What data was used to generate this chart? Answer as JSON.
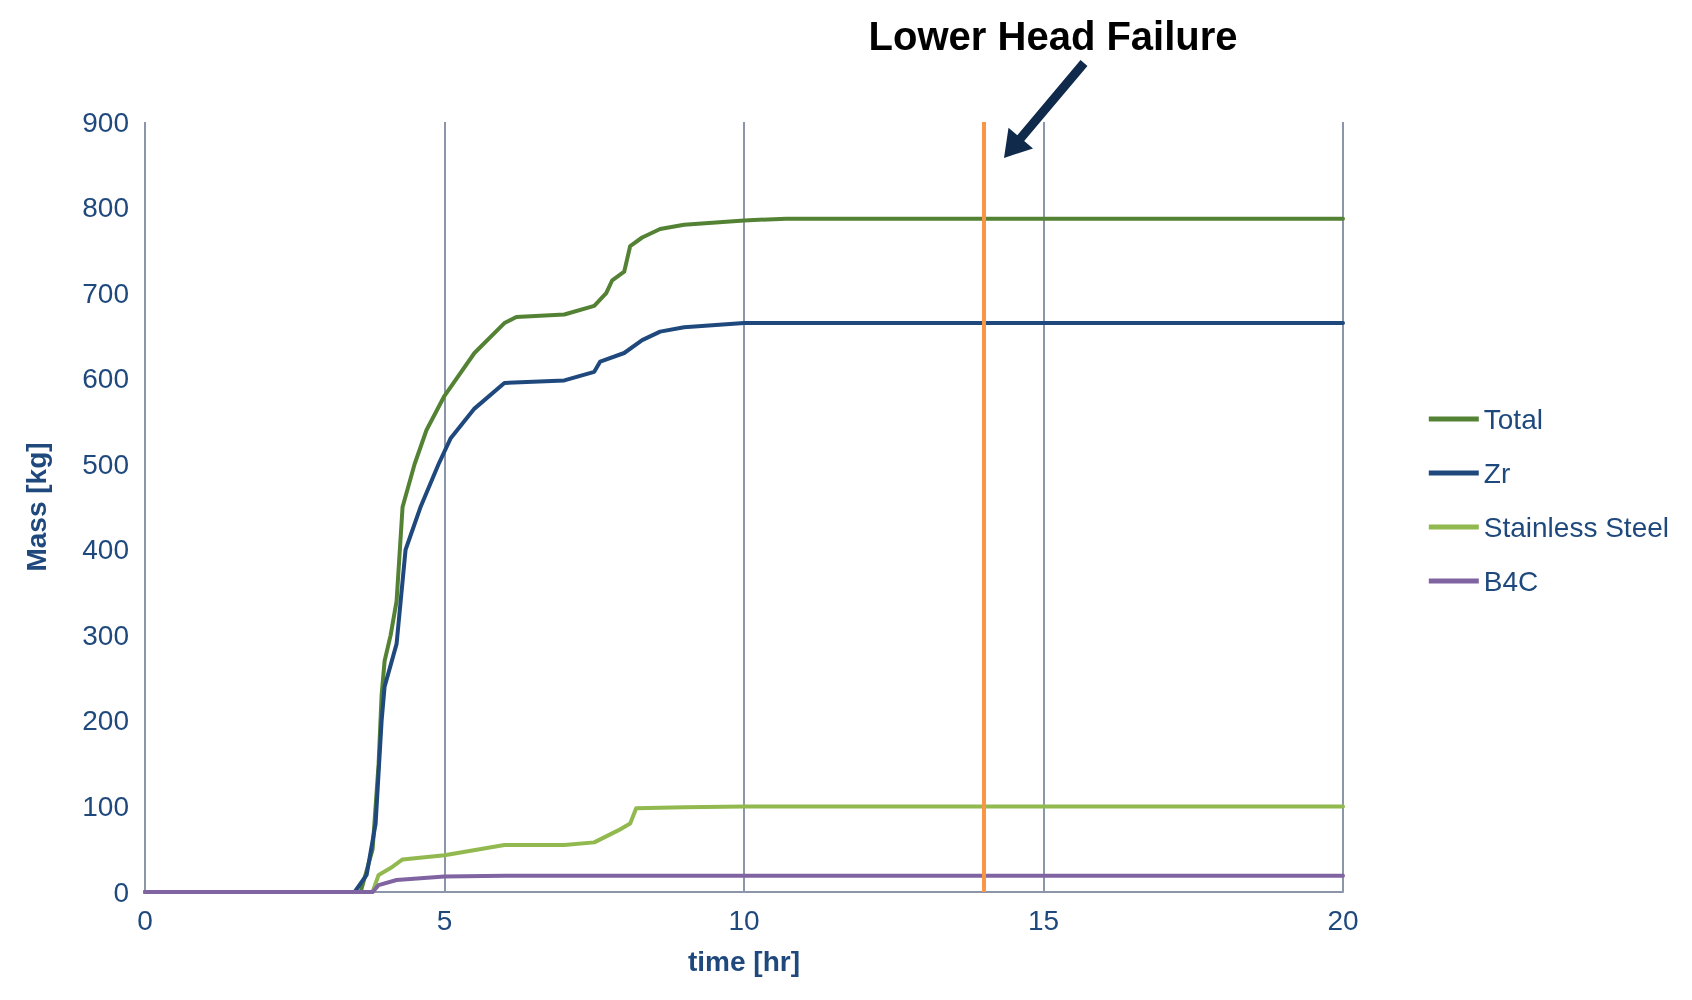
{
  "chart_data": {
    "type": "line",
    "xlabel": "time [hr]",
    "ylabel": "Mass [kg]",
    "xlim": [
      0,
      20
    ],
    "xticks": [
      0,
      5,
      10,
      15,
      20
    ],
    "ylim": [
      0,
      900
    ],
    "yticks": [
      0,
      100,
      200,
      300,
      400,
      500,
      600,
      700,
      800,
      900
    ],
    "grid": "x",
    "legend": "right",
    "marker": "none",
    "line_style": "solid",
    "series": [
      {
        "name": "Total",
        "color": "#548235",
        "x": [
          0,
          3.6,
          3.8,
          3.9,
          3.95,
          4.0,
          4.1,
          4.2,
          4.3,
          4.5,
          4.7,
          5.0,
          5.5,
          6.0,
          6.2,
          7.0,
          7.5,
          7.7,
          7.8,
          8.0,
          8.1,
          8.3,
          8.6,
          9.0,
          10,
          10.7,
          20
        ],
        "values": [
          0,
          0,
          50,
          150,
          230,
          270,
          300,
          340,
          450,
          500,
          540,
          580,
          630,
          665,
          672,
          675,
          685,
          700,
          715,
          725,
          755,
          765,
          775,
          780,
          785,
          787,
          787
        ]
      },
      {
        "name": "Zr",
        "color": "#1f497d",
        "x": [
          0,
          3.5,
          3.7,
          3.85,
          3.95,
          4.0,
          4.2,
          4.35,
          4.6,
          4.9,
          5.1,
          5.5,
          6.0,
          7.0,
          7.5,
          7.6,
          8.0,
          8.3,
          8.6,
          9.0,
          10,
          20
        ],
        "values": [
          0,
          0,
          20,
          80,
          200,
          240,
          290,
          400,
          450,
          500,
          530,
          565,
          595,
          598,
          608,
          620,
          630,
          645,
          655,
          660,
          665,
          665
        ]
      },
      {
        "name": "Stainless Steel",
        "color": "#92b94f",
        "x": [
          0,
          3.8,
          3.9,
          4.1,
          4.3,
          5.0,
          6.0,
          7.0,
          7.5,
          7.9,
          8.1,
          8.2,
          9,
          10,
          20
        ],
        "values": [
          0,
          0,
          20,
          28,
          38,
          43,
          55,
          55,
          58,
          72,
          80,
          98,
          99,
          100,
          100
        ]
      },
      {
        "name": "B4C",
        "color": "#8064a2",
        "x": [
          0,
          3.8,
          3.9,
          4.2,
          5.0,
          6.0,
          20
        ],
        "values": [
          0,
          0,
          8,
          14,
          18,
          19,
          19
        ]
      }
    ],
    "ref_lines": [
      {
        "axis": "x",
        "value": 14,
        "label": "Lower Head Failure",
        "color": "#f79646"
      }
    ]
  }
}
